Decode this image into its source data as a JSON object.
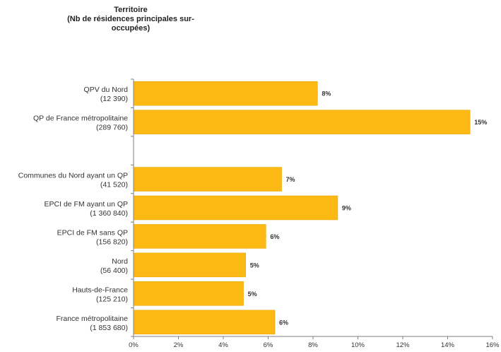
{
  "chart_data": {
    "type": "bar",
    "orientation": "horizontal",
    "ylabel": "Territoire\n(Nb de résidences principales sur-\noccupées)",
    "categories": [
      [
        "QPV du Nord",
        "(12 390)"
      ],
      [
        "QP de France métropolitaine",
        "(289 760)"
      ],
      [
        "",
        ""
      ],
      [
        "Communes du Nord ayant un QP",
        "(41 520)"
      ],
      [
        "EPCI de FM ayant un QP",
        "(1 360 840)"
      ],
      [
        "EPCI de FM sans QP",
        "(156 820)"
      ],
      [
        "Nord",
        "(56 400)"
      ],
      [
        "Hauts-de-France",
        "(125 210)"
      ],
      [
        "France métropolitaine",
        "(1 853 680)"
      ]
    ],
    "values": [
      8.2,
      15.0,
      null,
      6.6,
      9.1,
      5.9,
      5.0,
      4.9,
      6.3
    ],
    "data_labels": [
      "8%",
      "15%",
      "",
      "7%",
      "9%",
      "6%",
      "5%",
      "5%",
      "6%"
    ],
    "xlim": [
      0,
      16
    ],
    "x_ticks": [
      "0%",
      "2%",
      "4%",
      "6%",
      "8%",
      "10%",
      "12%",
      "14%",
      "16%"
    ],
    "grid": false,
    "legend": "none",
    "colors": {
      "bar": "#FDB913",
      "bar_border": "#E8A200",
      "axis": "#7f7f7f",
      "text": "#333333"
    }
  }
}
